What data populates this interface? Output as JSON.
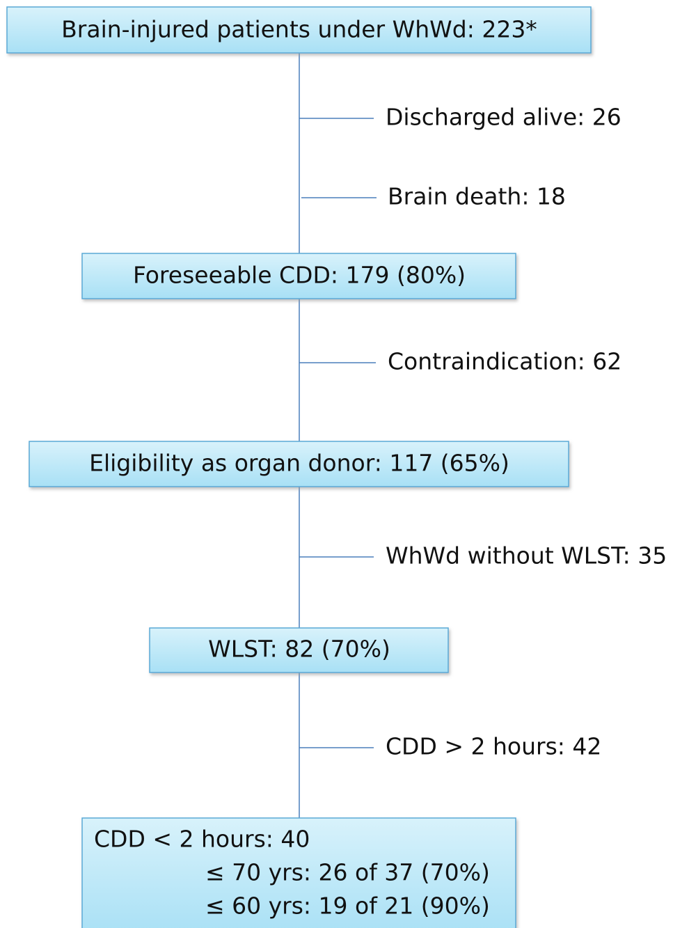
{
  "nodes": [
    {
      "label": "Brain-injured patients under WhWd:  223*"
    },
    {
      "label": "Foreseeable CDD: 179 (80%)"
    },
    {
      "label": "Eligibility as organ donor: 117 (65%)"
    },
    {
      "label": "WLST: 82 (70%)"
    },
    {
      "lines": [
        "CDD < 2 hours: 40",
        "≤ 70 yrs: 26 of 37 (70%)",
        "≤ 60 yrs: 19 of 21 (90%)"
      ]
    }
  ],
  "exclusions": [
    "Discharged alive: 26",
    "Brain death: 18",
    "Contraindication: 62",
    "WhWd without WLST: 35",
    "CDD > 2 hours: 42"
  ]
}
